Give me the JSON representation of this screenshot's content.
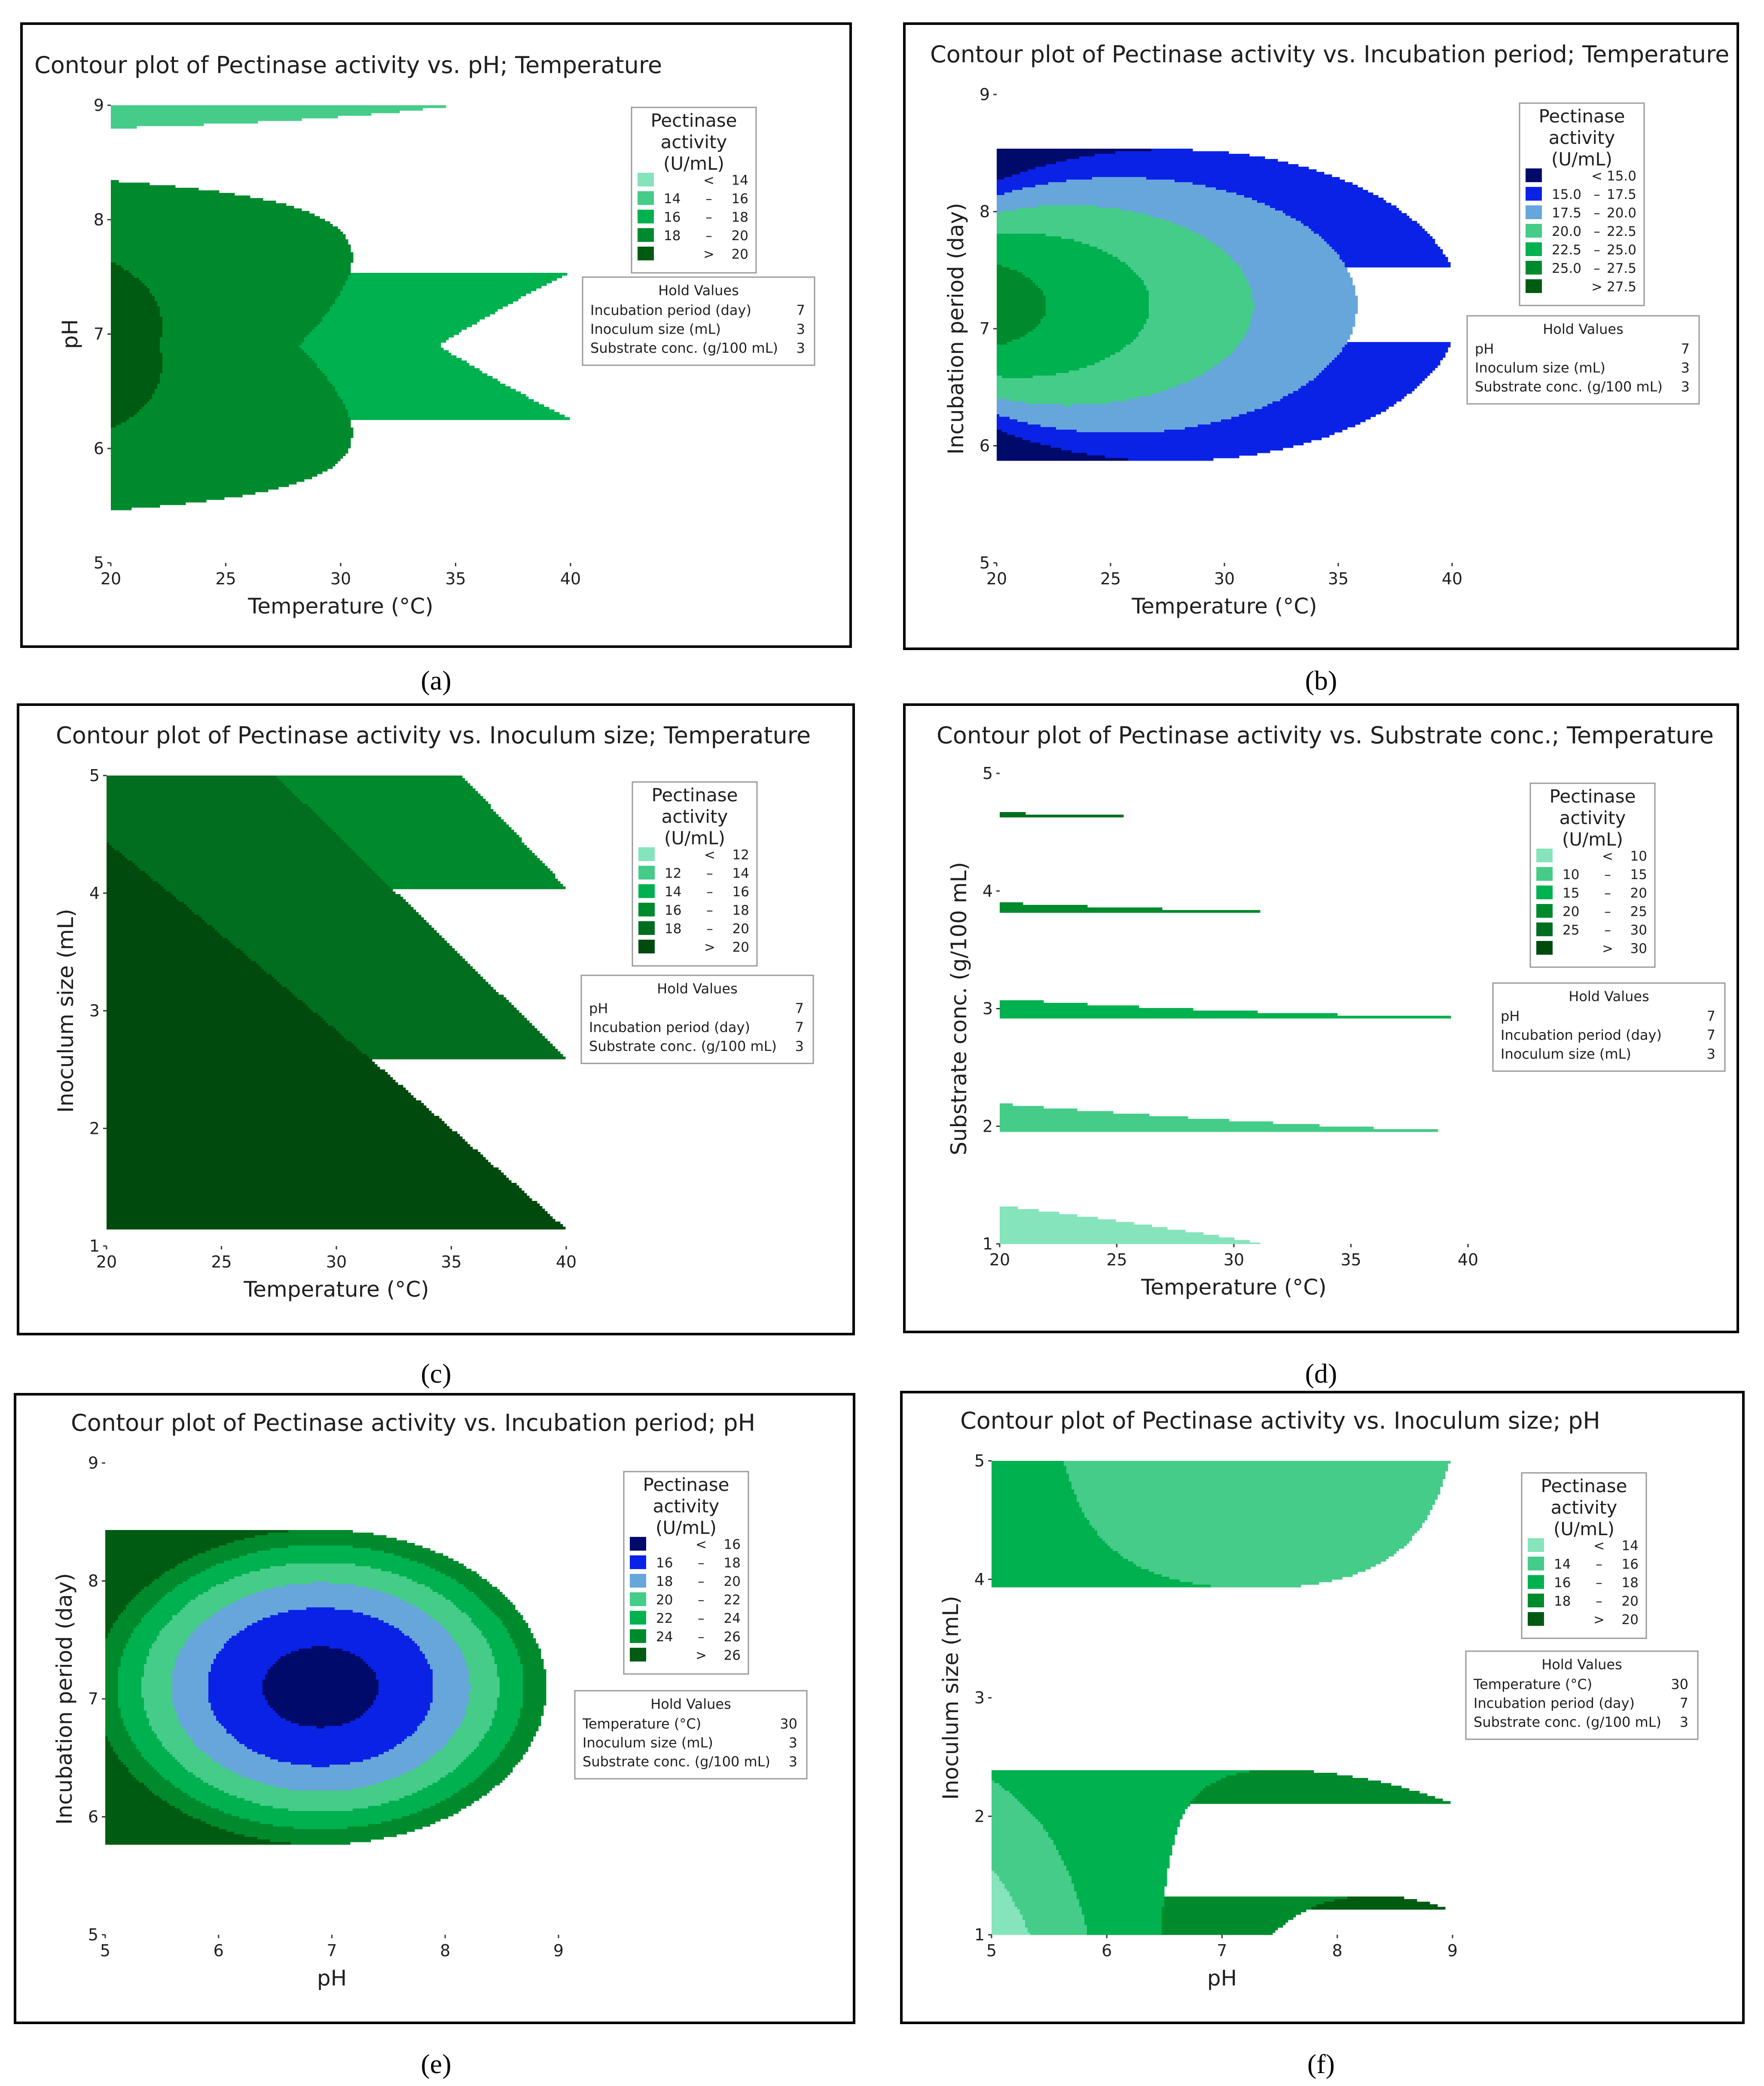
{
  "figure": {
    "panel_labels": [
      "(a)",
      "(b)",
      "(c)",
      "(d)",
      "(e)",
      "(f)"
    ],
    "legend_title": [
      "Pectinase",
      "activity",
      "(U/mL)"
    ],
    "hold_title": "Hold Values"
  },
  "chart_data": [
    {
      "type": "contour",
      "title": "Contour plot of Pectinase activity vs. pH; Temperature",
      "xlabel": "Temperature (°C)",
      "ylabel": "pH",
      "xlim": [
        20,
        40
      ],
      "ylim": [
        5,
        9
      ],
      "xticks": [
        "20",
        "25",
        "30",
        "35",
        "40"
      ],
      "yticks": [
        "5",
        "6",
        "7",
        "8",
        "9"
      ],
      "levels": [
        14,
        16,
        18,
        20
      ],
      "legend": [
        {
          "left": "",
          "op": "<",
          "right": "14",
          "color": "#85e4bb"
        },
        {
          "left": "14",
          "op": "–",
          "right": "16",
          "color": "#44cc88"
        },
        {
          "left": "16",
          "op": "–",
          "right": "18",
          "color": "#00b14f"
        },
        {
          "left": "18",
          "op": "–",
          "right": "20",
          "color": "#008a2e"
        },
        {
          "left": "",
          "op": ">",
          "right": "20",
          "color": "#005b12"
        }
      ],
      "hold_values": [
        {
          "name": "Incubation period (day)",
          "value": "7"
        },
        {
          "name": "Inoculum size (mL)",
          "value": "3"
        },
        {
          "name": "Substrate conc. (g/100 mL)",
          "value": "3"
        }
      ]
    },
    {
      "type": "contour",
      "title": "Contour plot of Pectinase activity vs. Incubation period; Temperature",
      "xlabel": "Temperature (°C)",
      "ylabel": "Incubation period (day)",
      "xlim": [
        20,
        40
      ],
      "ylim": [
        5,
        9
      ],
      "xticks": [
        "20",
        "25",
        "30",
        "35",
        "40"
      ],
      "yticks": [
        "5",
        "6",
        "7",
        "8",
        "9"
      ],
      "levels": [
        15,
        17.5,
        20,
        22.5,
        25,
        27.5
      ],
      "legend": [
        {
          "left": "",
          "op": "<",
          "right": "15.0",
          "color": "#000a6a"
        },
        {
          "left": "15.0",
          "op": "–",
          "right": "17.5",
          "color": "#0a22e6"
        },
        {
          "left": "17.5",
          "op": "–",
          "right": "20.0",
          "color": "#66a6da"
        },
        {
          "left": "20.0",
          "op": "–",
          "right": "22.5",
          "color": "#44cc88"
        },
        {
          "left": "22.5",
          "op": "–",
          "right": "25.0",
          "color": "#00b14f"
        },
        {
          "left": "25.0",
          "op": "–",
          "right": "27.5",
          "color": "#008a2e"
        },
        {
          "left": "",
          "op": ">",
          "right": "27.5",
          "color": "#005b12"
        }
      ],
      "hold_values": [
        {
          "name": "pH",
          "value": "7"
        },
        {
          "name": "Inoculum size (mL)",
          "value": "3"
        },
        {
          "name": "Substrate conc. (g/100 mL)",
          "value": "3"
        }
      ]
    },
    {
      "type": "contour",
      "title": "Contour plot of Pectinase activity vs. Inoculum size; Temperature",
      "xlabel": "Temperature (°C)",
      "ylabel": "Inoculum size (mL)",
      "xlim": [
        20,
        40
      ],
      "ylim": [
        1,
        5
      ],
      "xticks": [
        "20",
        "25",
        "30",
        "35",
        "40"
      ],
      "yticks": [
        "1",
        "2",
        "3",
        "4",
        "5"
      ],
      "levels": [
        12,
        14,
        16,
        18,
        20
      ],
      "legend": [
        {
          "left": "",
          "op": "<",
          "right": "12",
          "color": "#85e4bb"
        },
        {
          "left": "12",
          "op": "–",
          "right": "14",
          "color": "#44cc88"
        },
        {
          "left": "14",
          "op": "–",
          "right": "16",
          "color": "#00b14f"
        },
        {
          "left": "16",
          "op": "–",
          "right": "18",
          "color": "#008a2e"
        },
        {
          "left": "18",
          "op": "–",
          "right": "20",
          "color": "#006e1e"
        },
        {
          "left": "",
          "op": ">",
          "right": "20",
          "color": "#004a0e"
        }
      ],
      "hold_values": [
        {
          "name": "pH",
          "value": "7"
        },
        {
          "name": "Incubation period (day)",
          "value": "7"
        },
        {
          "name": "Substrate conc. (g/100 mL)",
          "value": "3"
        }
      ]
    },
    {
      "type": "contour",
      "title": "Contour plot of Pectinase activity vs. Substrate conc.; Temperature",
      "xlabel": "Temperature (°C)",
      "ylabel": "Substrate conc. (g/100 mL)",
      "xlim": [
        20,
        40
      ],
      "ylim": [
        1,
        5
      ],
      "xticks": [
        "20",
        "25",
        "30",
        "35",
        "40"
      ],
      "yticks": [
        "1",
        "2",
        "3",
        "4",
        "5"
      ],
      "levels": [
        10,
        15,
        20,
        25,
        30
      ],
      "legend": [
        {
          "left": "",
          "op": "<",
          "right": "10",
          "color": "#85e4bb"
        },
        {
          "left": "10",
          "op": "–",
          "right": "15",
          "color": "#44cc88"
        },
        {
          "left": "15",
          "op": "–",
          "right": "20",
          "color": "#00b14f"
        },
        {
          "left": "20",
          "op": "–",
          "right": "25",
          "color": "#008a2e"
        },
        {
          "left": "25",
          "op": "–",
          "right": "30",
          "color": "#006e1e"
        },
        {
          "left": "",
          "op": ">",
          "right": "30",
          "color": "#004a0e"
        }
      ],
      "hold_values": [
        {
          "name": "pH",
          "value": "7"
        },
        {
          "name": "Incubation period (day)",
          "value": "7"
        },
        {
          "name": "Inoculum size (mL)",
          "value": "3"
        }
      ]
    },
    {
      "type": "contour",
      "title": "Contour plot of Pectinase activity vs. Incubation period; pH",
      "xlabel": "pH",
      "ylabel": "Incubation period (day)",
      "xlim": [
        5,
        9
      ],
      "ylim": [
        5,
        9
      ],
      "xticks": [
        "5",
        "6",
        "7",
        "8",
        "9"
      ],
      "yticks": [
        "5",
        "6",
        "7",
        "8",
        "9"
      ],
      "levels": [
        16,
        18,
        20,
        22,
        24,
        26
      ],
      "legend": [
        {
          "left": "",
          "op": "<",
          "right": "16",
          "color": "#000a6a"
        },
        {
          "left": "16",
          "op": "–",
          "right": "18",
          "color": "#0a22e6"
        },
        {
          "left": "18",
          "op": "–",
          "right": "20",
          "color": "#66a6da"
        },
        {
          "left": "20",
          "op": "–",
          "right": "22",
          "color": "#44cc88"
        },
        {
          "left": "22",
          "op": "–",
          "right": "24",
          "color": "#00b14f"
        },
        {
          "left": "24",
          "op": "–",
          "right": "26",
          "color": "#008a2e"
        },
        {
          "left": "",
          "op": ">",
          "right": "26",
          "color": "#005b12"
        }
      ],
      "hold_values": [
        {
          "name": "Temperature (°C)",
          "value": "30"
        },
        {
          "name": "Inoculum size (mL)",
          "value": "3"
        },
        {
          "name": "Substrate conc. (g/100 mL)",
          "value": "3"
        }
      ]
    },
    {
      "type": "contour",
      "title": "Contour plot of Pectinase activity vs. Inoculum size; pH",
      "xlabel": "pH",
      "ylabel": "Inoculum size (mL)",
      "xlim": [
        5,
        9
      ],
      "ylim": [
        1,
        5
      ],
      "xticks": [
        "5",
        "6",
        "7",
        "8",
        "9"
      ],
      "yticks": [
        "1",
        "2",
        "3",
        "4",
        "5"
      ],
      "levels": [
        14,
        16,
        18,
        20
      ],
      "legend": [
        {
          "left": "",
          "op": "<",
          "right": "14",
          "color": "#85e4bb"
        },
        {
          "left": "14",
          "op": "–",
          "right": "16",
          "color": "#44cc88"
        },
        {
          "left": "16",
          "op": "–",
          "right": "18",
          "color": "#00b14f"
        },
        {
          "left": "18",
          "op": "–",
          "right": "20",
          "color": "#008a2e"
        },
        {
          "left": "",
          "op": ">",
          "right": "20",
          "color": "#005b12"
        }
      ],
      "hold_values": [
        {
          "name": "Temperature (°C)",
          "value": "30"
        },
        {
          "name": "Incubation period (day)",
          "value": "7"
        },
        {
          "name": "Substrate conc. (g/100 mL)",
          "value": "3"
        }
      ]
    }
  ]
}
